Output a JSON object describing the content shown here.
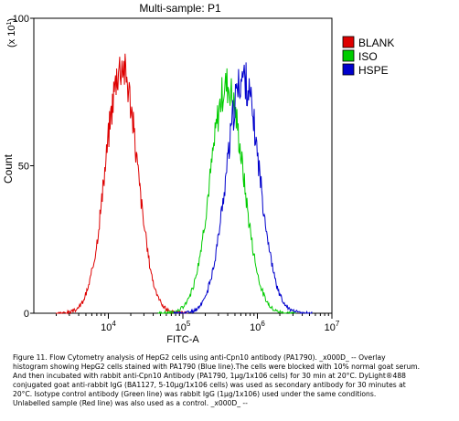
{
  "chart_data": {
    "type": "line",
    "title": "Multi-sample: P1",
    "xlabel": "FITC-A",
    "ylabel": "Count",
    "y_multiplier_label": "(x 10",
    "y_multiplier_exp": "1",
    "x_scale": "log",
    "xlim": [
      1000,
      10000000
    ],
    "ylim": [
      0,
      100
    ],
    "x_ticks": [
      {
        "value": 10000,
        "base": "10",
        "exp": "4"
      },
      {
        "value": 100000,
        "base": "10",
        "exp": "5"
      },
      {
        "value": 1000000,
        "base": "10",
        "exp": "6"
      },
      {
        "value": 10000000,
        "base": "10",
        "exp": "7"
      }
    ],
    "y_ticks": [
      {
        "value": 0,
        "label": "0"
      },
      {
        "value": 50,
        "label": "50"
      },
      {
        "value": 100,
        "label": "100"
      }
    ],
    "grid": false,
    "legend_position": "right",
    "series": [
      {
        "name": "BLANK",
        "color": "#dd0000",
        "center": 15000,
        "sigma": 0.21,
        "peak": 88,
        "seed": 3
      },
      {
        "name": "ISO",
        "color": "#00cc00",
        "center": 390000,
        "sigma": 0.22,
        "peak": 83,
        "seed": 7
      },
      {
        "name": "HSPE",
        "color": "#0000cc",
        "center": 640000,
        "sigma": 0.22,
        "peak": 85,
        "seed": 11
      }
    ]
  },
  "caption": {
    "lines": [
      "Figure 11. Flow Cytometry analysis of HepG2 cells using anti-Cpn10 antibody (PA1790). _x000D_ -- Overlay",
      "histogram showing HepG2 cells stained with PA1790 (Blue line).The cells were blocked with 10% normal goat serum.",
      "And then incubated with rabbit anti-Cpn10 Antibody (PA1790, 1μg/1x106 cells) for 30 min at 20°C. DyLight®488",
      "conjugated goat anti-rabbit IgG (BA1127, 5-10μg/1x106 cells) was used as secondary antibody for 30 minutes at",
      "20°C. Isotype control antibody (Green line) was rabbit IgG (1μg/1x106) used under the same conditions.",
      "Unlabelled sample (Red line) was also used as a control. _x000D_ --"
    ]
  }
}
